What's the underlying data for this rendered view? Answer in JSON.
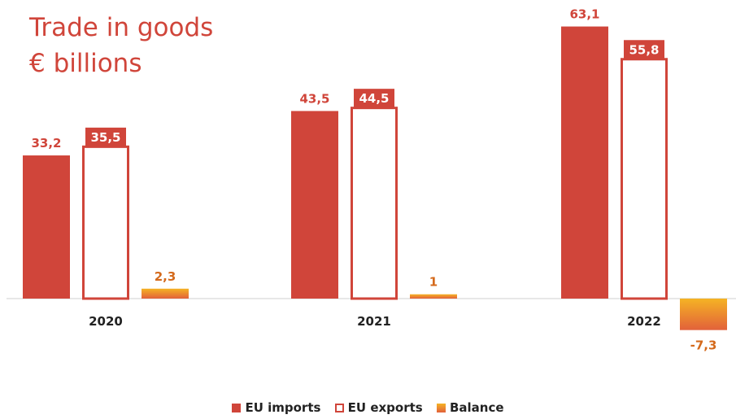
{
  "title_line1": "Trade in goods",
  "title_line2": "€ billions",
  "chart_data": {
    "type": "bar",
    "categories": [
      "2020",
      "2021",
      "2022"
    ],
    "series": [
      {
        "name": "EU imports",
        "values": [
          33.2,
          43.5,
          63.1
        ],
        "labels": [
          "33,2",
          "43,5",
          "63,1"
        ],
        "color": "#d0453a",
        "style": "filled"
      },
      {
        "name": "EU exports",
        "values": [
          35.5,
          44.5,
          55.8
        ],
        "labels": [
          "35,5",
          "44,5",
          "55,8"
        ],
        "color": "#d0453a",
        "style": "outline"
      },
      {
        "name": "Balance",
        "values": [
          2.3,
          1,
          -7.3
        ],
        "labels": [
          "2,3",
          "1",
          "-7,3"
        ],
        "color": "#f5b324",
        "color2": "#e2613a",
        "style": "gradient"
      }
    ],
    "legend": "bottom",
    "grid": false
  }
}
